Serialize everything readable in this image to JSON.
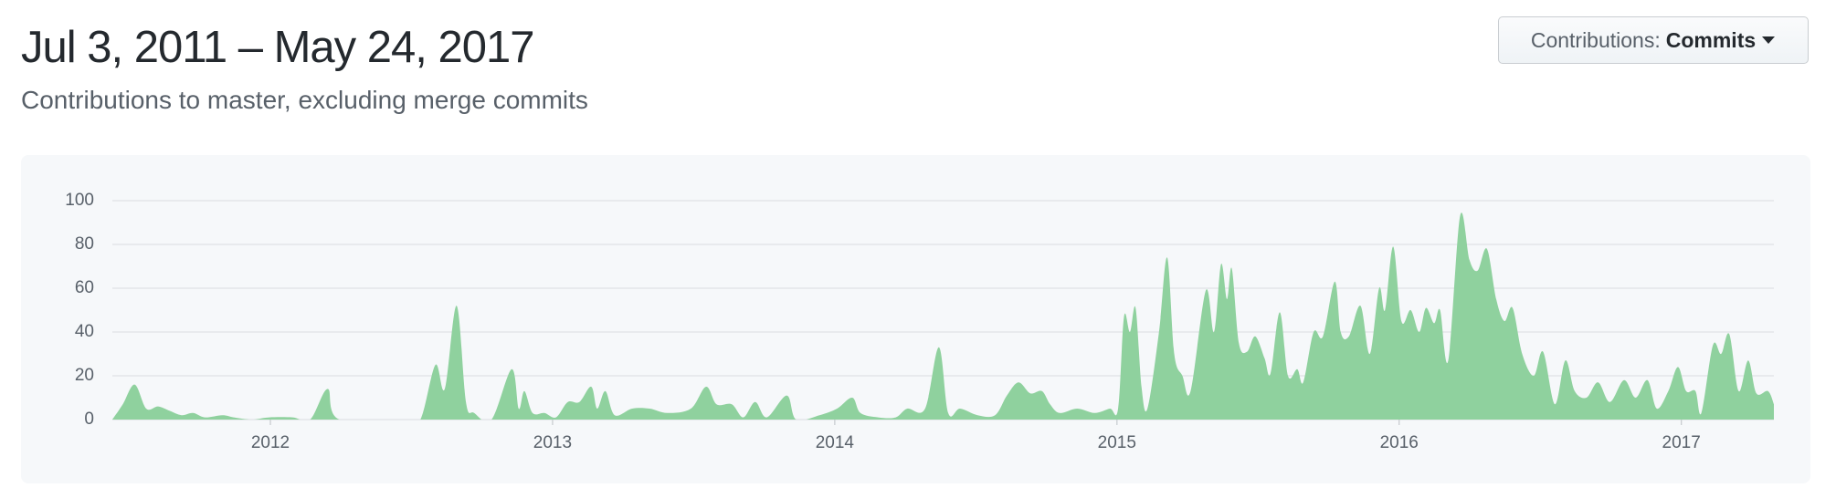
{
  "header": {
    "title": "Jul 3, 2011 – May 24, 2017",
    "subtitle": "Contributions to master, excluding merge commits"
  },
  "button": {
    "label": "Contributions:",
    "value": "Commits"
  },
  "chart_data": {
    "type": "area",
    "color": "#8fd19e",
    "grid": true,
    "xlim": [
      2011.44,
      2017.328
    ],
    "xticks": [
      2012,
      2013,
      2014,
      2015,
      2016,
      2017
    ],
    "ylim": [
      0,
      100
    ],
    "yticks": [
      0,
      20,
      40,
      60,
      80,
      100
    ],
    "x": [
      2011.44,
      2011.477,
      2011.519,
      2011.56,
      2011.602,
      2011.643,
      2011.685,
      2011.726,
      2011.768,
      2011.83,
      2011.871,
      2011.934,
      2011.996,
      2012.079,
      2012.141,
      2012.203,
      2012.245,
      2012.494,
      2012.535,
      2012.585,
      2012.618,
      2012.66,
      2012.693,
      2012.722,
      2012.784,
      2012.855,
      2012.88,
      2012.9,
      2012.929,
      2012.971,
      2013.012,
      2013.054,
      2013.095,
      2013.137,
      2013.158,
      2013.187,
      2013.22,
      2013.282,
      2013.344,
      2013.407,
      2013.49,
      2013.544,
      2013.581,
      2013.635,
      2013.676,
      2013.718,
      2013.759,
      2013.83,
      2013.863,
      2013.946,
      2014.008,
      2014.062,
      2014.091,
      2014.154,
      2014.216,
      2014.257,
      2014.32,
      2014.369,
      2014.402,
      2014.444,
      2014.506,
      2014.568,
      2014.61,
      2014.651,
      2014.693,
      2014.734,
      2014.763,
      2014.797,
      2014.859,
      2014.921,
      2014.975,
      2015.004,
      2015.025,
      2015.046,
      2015.066,
      2015.087,
      2015.108,
      2015.149,
      2015.178,
      2015.203,
      2015.232,
      2015.261,
      2015.315,
      2015.344,
      2015.369,
      2015.39,
      2015.407,
      2015.432,
      2015.461,
      2015.49,
      2015.523,
      2015.544,
      2015.577,
      2015.606,
      2015.639,
      2015.66,
      2015.697,
      2015.73,
      2015.772,
      2015.793,
      2015.822,
      2015.863,
      2015.896,
      2015.929,
      2015.95,
      2015.979,
      2016.008,
      2016.041,
      2016.071,
      2016.095,
      2016.124,
      2016.145,
      2016.174,
      2016.216,
      2016.249,
      2016.278,
      2016.311,
      2016.344,
      2016.373,
      2016.402,
      2016.436,
      2016.477,
      2016.51,
      2016.552,
      2016.589,
      2016.622,
      2016.664,
      2016.705,
      2016.747,
      2016.797,
      2016.838,
      2016.88,
      2016.913,
      2016.954,
      2016.988,
      2017.017,
      2017.05,
      2017.071,
      2017.112,
      2017.141,
      2017.17,
      2017.203,
      2017.237,
      2017.266,
      2017.307,
      2017.328
    ],
    "values": [
      0,
      7,
      16,
      5,
      6,
      4,
      2,
      3,
      1,
      2,
      1,
      0,
      1,
      1,
      0,
      14,
      0,
      0,
      1,
      25,
      14,
      52,
      8,
      3,
      0,
      23,
      5,
      13,
      3,
      3,
      1,
      8,
      8,
      15,
      5,
      13,
      2,
      5,
      5,
      3,
      5,
      15,
      7,
      7,
      1,
      8,
      1,
      11,
      0,
      2,
      5,
      10,
      3,
      1,
      1,
      5,
      5,
      33,
      3,
      5,
      2,
      2,
      11,
      17,
      12,
      13,
      7,
      3,
      5,
      3,
      5,
      5,
      47,
      40,
      51,
      15,
      5,
      40,
      74,
      30,
      20,
      13,
      59,
      40,
      71,
      55,
      69,
      35,
      31,
      38,
      28,
      21,
      49,
      20,
      23,
      17,
      40,
      38,
      63,
      40,
      38,
      52,
      30,
      60,
      50,
      79,
      45,
      50,
      40,
      51,
      44,
      50,
      27,
      93,
      73,
      68,
      78,
      55,
      45,
      51,
      30,
      20,
      31,
      7,
      27,
      13,
      10,
      17,
      8,
      18,
      10,
      18,
      5,
      13,
      24,
      13,
      13,
      3,
      34,
      30,
      39,
      13,
      27,
      12,
      13,
      7
    ]
  }
}
